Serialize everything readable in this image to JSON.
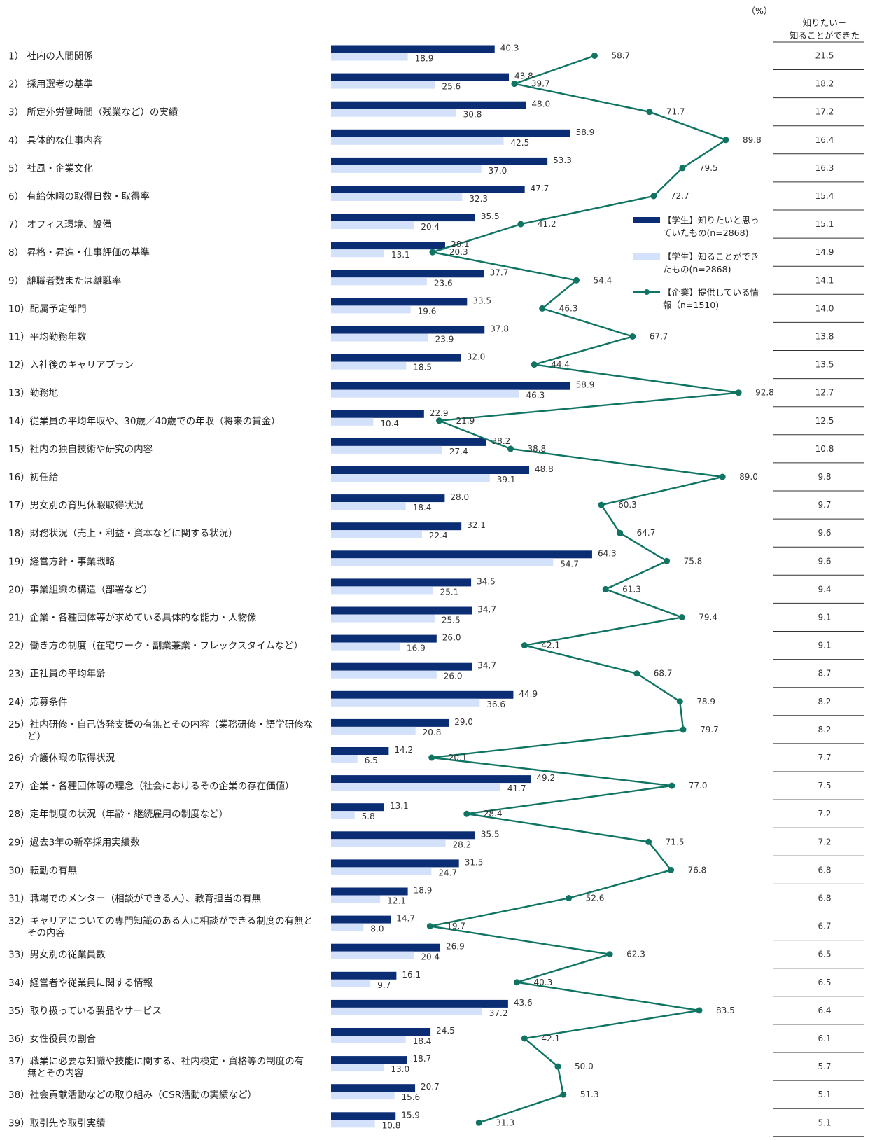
{
  "chart_data": {
    "type": "bar",
    "unit_label": "（%）",
    "diff_header": [
      "知りたい－",
      "知ることができた"
    ],
    "legend": [
      {
        "lines": [
          "【学生】知りたいと思っ",
          "ていたもの(n=2868)"
        ],
        "color": "#0b2d74",
        "kind": "bar"
      },
      {
        "lines": [
          "【学生】知ることができ",
          "たもの(n=2868)"
        ],
        "color": "#d3e1fb",
        "kind": "bar"
      },
      {
        "lines": [
          "【企業】提供している情",
          "報（n=1510)"
        ],
        "color": "#0f7462",
        "kind": "line"
      }
    ],
    "colors": {
      "want": "#0b2d74",
      "got": "#d3e1fb",
      "company": "#0f7462"
    },
    "categories": [
      {
        "label": [
          "1）  社内の人間関係"
        ],
        "want": 40.3,
        "got": 18.9,
        "company": 58.7,
        "diff": "21.5"
      },
      {
        "label": [
          "2）  採用選考の基準"
        ],
        "want": 43.8,
        "got": 25.6,
        "company": 39.7,
        "diff": "18.2"
      },
      {
        "label": [
          "3）  所定外労働時間（残業など）の実績"
        ],
        "want": 48.0,
        "got": 30.8,
        "company": 71.7,
        "diff": "17.2"
      },
      {
        "label": [
          "4）  具体的な仕事内容"
        ],
        "want": 58.9,
        "got": 42.5,
        "company": 89.8,
        "diff": "16.4"
      },
      {
        "label": [
          "5）  社風・企業文化"
        ],
        "want": 53.3,
        "got": 37.0,
        "company": 79.5,
        "diff": "16.3"
      },
      {
        "label": [
          "6）  有給休暇の取得日数・取得率"
        ],
        "want": 47.7,
        "got": 32.3,
        "company": 72.7,
        "diff": "15.4"
      },
      {
        "label": [
          "7）  オフィス環境、設備"
        ],
        "want": 35.5,
        "got": 20.4,
        "company": 41.2,
        "diff": "15.1"
      },
      {
        "label": [
          "8）  昇格・昇進・仕事評価の基準"
        ],
        "want": 28.1,
        "got": 13.1,
        "company": 20.3,
        "diff": "14.9"
      },
      {
        "label": [
          "9）  離職者数または離職率"
        ],
        "want": 37.7,
        "got": 23.6,
        "company": 54.4,
        "diff": "14.1"
      },
      {
        "label": [
          "10）配属予定部門"
        ],
        "want": 33.5,
        "got": 19.6,
        "company": 46.3,
        "diff": "14.0"
      },
      {
        "label": [
          "11）平均勤務年数"
        ],
        "want": 37.8,
        "got": 23.9,
        "company": 67.7,
        "diff": "13.8"
      },
      {
        "label": [
          "12）入社後のキャリアプラン"
        ],
        "want": 32.0,
        "got": 18.5,
        "company": 44.4,
        "diff": "13.5"
      },
      {
        "label": [
          "13）勤務地"
        ],
        "want": 58.9,
        "got": 46.3,
        "company": 92.8,
        "diff": "12.7"
      },
      {
        "label": [
          "14）従業員の平均年収や、30歳／40歳での年収（将来の賃金）"
        ],
        "want": 22.9,
        "got": 10.4,
        "company": 21.9,
        "diff": "12.5"
      },
      {
        "label": [
          "15）社内の独自技術や研究の内容"
        ],
        "want": 38.2,
        "got": 27.4,
        "company": 38.8,
        "diff": "10.8"
      },
      {
        "label": [
          "16）初任給"
        ],
        "want": 48.8,
        "got": 39.1,
        "company": 89.0,
        "diff": "9.8"
      },
      {
        "label": [
          "17）男女別の育児休暇取得状況"
        ],
        "want": 28.0,
        "got": 18.4,
        "company": 60.3,
        "diff": "9.7"
      },
      {
        "label": [
          "18）財務状況（売上・利益・資本などに関する状況）"
        ],
        "want": 32.1,
        "got": 22.4,
        "company": 64.7,
        "diff": "9.6"
      },
      {
        "label": [
          "19）経営方針・事業戦略"
        ],
        "want": 64.3,
        "got": 54.7,
        "company": 75.8,
        "diff": "9.6"
      },
      {
        "label": [
          "20）事業組織の構造（部署など）"
        ],
        "want": 34.5,
        "got": 25.1,
        "company": 61.3,
        "diff": "9.4"
      },
      {
        "label": [
          "21）企業・各種団体等が求めている具体的な能力・人物像"
        ],
        "want": 34.7,
        "got": 25.5,
        "company": 79.4,
        "diff": "9.1"
      },
      {
        "label": [
          "22）働き方の制度（在宅ワーク・副業兼業・フレックスタイムなど）"
        ],
        "want": 26.0,
        "got": 16.9,
        "company": 42.1,
        "diff": "9.1"
      },
      {
        "label": [
          "23）正社員の平均年齢"
        ],
        "want": 34.7,
        "got": 26.0,
        "company": 68.7,
        "diff": "8.7"
      },
      {
        "label": [
          "24）応募条件"
        ],
        "want": 44.9,
        "got": 36.6,
        "company": 78.9,
        "diff": "8.2"
      },
      {
        "label": [
          "25）社内研修・自己啓発支援の有無とその内容（業務研修・語学研修な",
          "　　ど）"
        ],
        "want": 29.0,
        "got": 20.8,
        "company": 79.7,
        "diff": "8.2"
      },
      {
        "label": [
          "26）介護休暇の取得状況"
        ],
        "want": 14.2,
        "got": 6.5,
        "company": 20.1,
        "diff": "7.7"
      },
      {
        "label": [
          "27）企業・各種団体等の理念（社会におけるその企業の存在価値）"
        ],
        "want": 49.2,
        "got": 41.7,
        "company": 77.0,
        "diff": "7.5"
      },
      {
        "label": [
          "28）定年制度の状況（年齢・継続雇用の制度など）"
        ],
        "want": 13.1,
        "got": 5.8,
        "company": 28.4,
        "diff": "7.2"
      },
      {
        "label": [
          "29）過去3年の新卒採用実績数"
        ],
        "want": 35.5,
        "got": 28.2,
        "company": 71.5,
        "diff": "7.2"
      },
      {
        "label": [
          "30）転勤の有無"
        ],
        "want": 31.5,
        "got": 24.7,
        "company": 76.8,
        "diff": "6.8"
      },
      {
        "label": [
          "31）職場でのメンター（相談ができる人）、教育担当の有無"
        ],
        "want": 18.9,
        "got": 12.1,
        "company": 52.6,
        "diff": "6.8"
      },
      {
        "label": [
          "32）キャリアについての専門知識のある人に相談ができる制度の有無と",
          "　　その内容"
        ],
        "want": 14.7,
        "got": 8.0,
        "company": 19.7,
        "diff": "6.7"
      },
      {
        "label": [
          "33）男女別の従業員数"
        ],
        "want": 26.9,
        "got": 20.4,
        "company": 62.3,
        "diff": "6.5"
      },
      {
        "label": [
          "34）経営者や従業員に関する情報"
        ],
        "want": 16.1,
        "got": 9.7,
        "company": 40.3,
        "diff": "6.5"
      },
      {
        "label": [
          "35）取り扱っている製品やサービス"
        ],
        "want": 43.6,
        "got": 37.2,
        "company": 83.5,
        "diff": "6.4"
      },
      {
        "label": [
          "36）女性役員の割合"
        ],
        "want": 24.5,
        "got": 18.4,
        "company": 42.1,
        "diff": "6.1"
      },
      {
        "label": [
          "37）職業に必要な知識や技能に関する、社内検定・資格等の制度の有",
          "　　無とその内容"
        ],
        "want": 18.7,
        "got": 13.0,
        "company": 50.0,
        "diff": "5.7"
      },
      {
        "label": [
          "38）社会貢献活動などの取り組み（CSR活動の実績など）"
        ],
        "want": 20.7,
        "got": 15.6,
        "company": 51.3,
        "diff": "5.1"
      },
      {
        "label": [
          "39）取引先や取引実績"
        ],
        "want": 15.9,
        "got": 10.8,
        "company": 31.3,
        "diff": "5.1"
      }
    ]
  }
}
